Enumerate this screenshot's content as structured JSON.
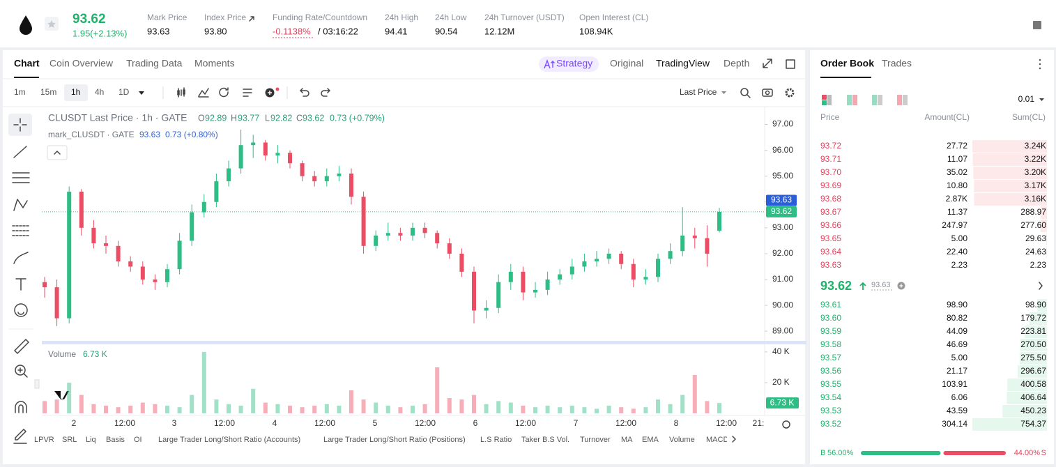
{
  "header": {
    "price": "93.62",
    "change": "1.95(+2.13%)",
    "stats": [
      {
        "label": "Mark Price",
        "value": "93.63"
      },
      {
        "label": "Index Price",
        "value": "93.80"
      },
      {
        "label": "Funding Rate/Countdown",
        "value": "-0.1138%",
        "extra": "/ 03:16:22"
      },
      {
        "label": "24h High",
        "value": "94.41"
      },
      {
        "label": "24h Low",
        "value": "90.54"
      },
      {
        "label": "24h Turnover (USDT)",
        "value": "12.12M"
      },
      {
        "label": "Open Interest (CL)",
        "value": "108.94K"
      }
    ]
  },
  "tabs": [
    "Chart",
    "Coin Overview",
    "Trading Data",
    "Moments"
  ],
  "views": [
    "Strategy",
    "Original",
    "TradingView",
    "Depth"
  ],
  "intervals": [
    "1m",
    "15m",
    "1h",
    "4h",
    "1D"
  ],
  "price_type": "Last Price",
  "legend": {
    "symbol": "CLUSDT Last Price · 1h · GATE",
    "ohlc": [
      {
        "key": "O",
        "value": "92.89"
      },
      {
        "key": "H",
        "value": "93.77"
      },
      {
        "key": "L",
        "value": "92.82"
      },
      {
        "key": "C",
        "value": "93.62"
      }
    ],
    "change": "0.73 (+0.79%)",
    "mark": "mark_CLUSDT · GATE",
    "mark_price": "93.63",
    "mark_change": "0.73 (+0.80%)"
  },
  "chart_data": {
    "type": "candlestick",
    "up_color": "#2ebd85",
    "down_color": "#ea4d64",
    "open": [
      90.9,
      90.7,
      89.5,
      94.4,
      93.0,
      92.4,
      92.3,
      91.7,
      91.5,
      91.0,
      90.9,
      91.4,
      92.5,
      93.6,
      94.0,
      94.8,
      95.3,
      96.2,
      96.3,
      95.8,
      95.9,
      95.5,
      95.0,
      94.8,
      95.0,
      95.1,
      94.2,
      92.3,
      92.7,
      92.8,
      92.7,
      93.0,
      92.8,
      92.4,
      92.0,
      91.3,
      89.8,
      89.9,
      90.9,
      91.3,
      90.5,
      90.6,
      91.0,
      91.2,
      91.5,
      91.7,
      91.8,
      92.0,
      91.6,
      91.0,
      91.1,
      91.8,
      92.1,
      92.7,
      92.6,
      92.89
    ],
    "high": [
      91.1,
      91.0,
      94.6,
      94.5,
      93.3,
      92.7,
      92.5,
      91.9,
      91.7,
      91.2,
      91.6,
      92.8,
      93.9,
      94.3,
      95.1,
      95.6,
      96.8,
      96.6,
      96.4,
      96.2,
      96.0,
      95.6,
      95.2,
      95.3,
      95.4,
      95.3,
      94.4,
      92.9,
      93.2,
      93.0,
      93.2,
      93.2,
      92.9,
      92.6,
      92.2,
      91.5,
      90.2,
      91.2,
      91.6,
      91.5,
      90.9,
      91.3,
      91.4,
      91.8,
      92.0,
      92.1,
      92.2,
      92.1,
      91.8,
      91.4,
      92.0,
      92.4,
      93.8,
      93.0,
      93.1,
      93.77
    ],
    "low": [
      90.3,
      89.2,
      89.3,
      92.7,
      92.2,
      92.0,
      91.5,
      91.3,
      90.8,
      90.6,
      90.7,
      91.2,
      92.3,
      93.4,
      93.8,
      94.6,
      95.1,
      95.7,
      95.6,
      95.5,
      95.3,
      94.8,
      94.6,
      94.6,
      94.8,
      93.9,
      92.0,
      92.1,
      92.5,
      92.5,
      92.5,
      92.6,
      92.2,
      91.8,
      91.1,
      89.3,
      89.5,
      89.7,
      90.6,
      90.2,
      90.3,
      90.4,
      90.8,
      91.0,
      91.3,
      91.5,
      91.6,
      91.4,
      90.7,
      90.8,
      90.9,
      91.6,
      91.9,
      92.2,
      91.5,
      92.82
    ],
    "close": [
      90.7,
      89.5,
      94.4,
      93.0,
      92.4,
      92.3,
      91.7,
      91.5,
      91.0,
      90.9,
      91.4,
      92.5,
      93.6,
      94.0,
      94.8,
      95.3,
      96.2,
      96.3,
      95.8,
      95.9,
      95.5,
      95.0,
      94.8,
      95.0,
      95.1,
      94.2,
      92.3,
      92.7,
      92.8,
      92.7,
      93.0,
      92.8,
      92.4,
      92.0,
      91.3,
      89.8,
      89.9,
      90.9,
      91.3,
      90.5,
      90.6,
      91.0,
      91.2,
      91.5,
      91.7,
      91.8,
      92.0,
      91.6,
      91.0,
      91.1,
      91.8,
      92.1,
      92.7,
      92.6,
      92.0,
      93.62
    ],
    "ylim": [
      88.6,
      97.5
    ],
    "yticks": [
      {
        "value": 97,
        "label": "97.00"
      },
      {
        "value": 96,
        "label": "96.00"
      },
      {
        "value": 95,
        "label": "95.00"
      },
      {
        "value": 94,
        "label": "94.00"
      },
      {
        "value": 93,
        "label": "93.00"
      },
      {
        "value": 92,
        "label": "92.00"
      },
      {
        "value": 91,
        "label": "91.00"
      },
      {
        "value": 90,
        "label": "90.00"
      },
      {
        "value": 89,
        "label": "89.00"
      }
    ],
    "x_labels": [
      "2",
      "12:00",
      "3",
      "12:00",
      "4",
      "12:00",
      "5",
      "12:00",
      "6",
      "12:00",
      "7",
      "12:00",
      "8",
      "12:00",
      "21:"
    ],
    "mark_price": 93.63,
    "last_price": 93.62
  },
  "volume": {
    "type": "bar",
    "title": "Volume",
    "current_label": "6.73 K",
    "values": [
      8000,
      9000,
      20000,
      12000,
      6000,
      5000,
      4000,
      5000,
      7000,
      6000,
      5000,
      4000,
      12000,
      40000,
      9000,
      6000,
      5000,
      16000,
      7000,
      6000,
      5000,
      4000,
      5000,
      6000,
      5000,
      15000,
      9000,
      7000,
      5000,
      4000,
      5000,
      6000,
      30000,
      10000,
      9000,
      12000,
      6000,
      8000,
      7000,
      5000,
      4000,
      5000,
      4000,
      5000,
      4000,
      3000,
      5000,
      4000,
      3000,
      4000,
      9000,
      6000,
      12000,
      25000,
      8000,
      6730
    ],
    "ylim": [
      0,
      43600
    ],
    "yticks": [
      {
        "value": 20000,
        "label": "20 K"
      },
      {
        "value": 40000,
        "label": "40 K"
      }
    ]
  },
  "indicators": [
    "LPVR",
    "SRL",
    "Liq",
    "Basis",
    "OI",
    "Large Trader Long/Short Ratio (Accounts)",
    "Large Trader Long/Short Ratio (Positions)",
    "L.S Ratio",
    "Taker B.S Vol.",
    "Turnover",
    "MA",
    "EMA",
    "Volume",
    "MACD"
  ],
  "order_book": {
    "tabs": [
      "Order Book",
      "Trades"
    ],
    "precision": "0.01",
    "columns": [
      "Price",
      "Amount(CL)",
      "Sum(CL)"
    ],
    "asks": [
      {
        "price": "93.72",
        "amount": "27.72",
        "sum": {
          "value": 3240,
          "label": "3.24K"
        }
      },
      {
        "price": "93.71",
        "amount": "11.07",
        "sum": {
          "value": 3220,
          "label": "3.22K"
        }
      },
      {
        "price": "93.70",
        "amount": "35.02",
        "sum": {
          "value": 3200,
          "label": "3.20K"
        }
      },
      {
        "price": "93.69",
        "amount": "10.80",
        "sum": {
          "value": 3170,
          "label": "3.17K"
        }
      },
      {
        "price": "93.68",
        "amount": "2.87K",
        "sum": {
          "value": 3160,
          "label": "3.16K"
        }
      },
      {
        "price": "93.67",
        "amount": "11.37",
        "sum": 288.97
      },
      {
        "price": "93.66",
        "amount": "247.97",
        "sum": {
          "value": 277.6,
          "label": "277.60"
        }
      },
      {
        "price": "93.65",
        "amount": "5.00",
        "sum": 29.63
      },
      {
        "price": "93.64",
        "amount": "22.40",
        "sum": 24.63
      },
      {
        "price": "93.63",
        "amount": "2.23",
        "sum": 2.23
      }
    ],
    "last": "93.62",
    "mark": "93.63",
    "bids": [
      {
        "price": "93.61",
        "amount": "98.90",
        "sum": {
          "value": 98.9,
          "label": "98.90"
        }
      },
      {
        "price": "93.60",
        "amount": "80.82",
        "sum": 179.72
      },
      {
        "price": "93.59",
        "amount": "44.09",
        "sum": 223.81
      },
      {
        "price": "93.58",
        "amount": "46.69",
        "sum": {
          "value": 270.5,
          "label": "270.50"
        }
      },
      {
        "price": "93.57",
        "amount": "5.00",
        "sum": {
          "value": 275.5,
          "label": "275.50"
        }
      },
      {
        "price": "93.56",
        "amount": "21.17",
        "sum": 296.67
      },
      {
        "price": "93.55",
        "amount": "103.91",
        "sum": 400.58
      },
      {
        "price": "93.54",
        "amount": "6.06",
        "sum": 406.64
      },
      {
        "price": "93.53",
        "amount": "43.59",
        "sum": 450.23
      },
      {
        "price": "93.52",
        "amount": "304.14",
        "sum": 754.37
      }
    ],
    "buy": {
      "key": "B",
      "share": {
        "value": 56,
        "label": "56.00%"
      }
    },
    "sell": {
      "key": "S",
      "share": {
        "value": 44,
        "label": "44.00%"
      }
    }
  }
}
